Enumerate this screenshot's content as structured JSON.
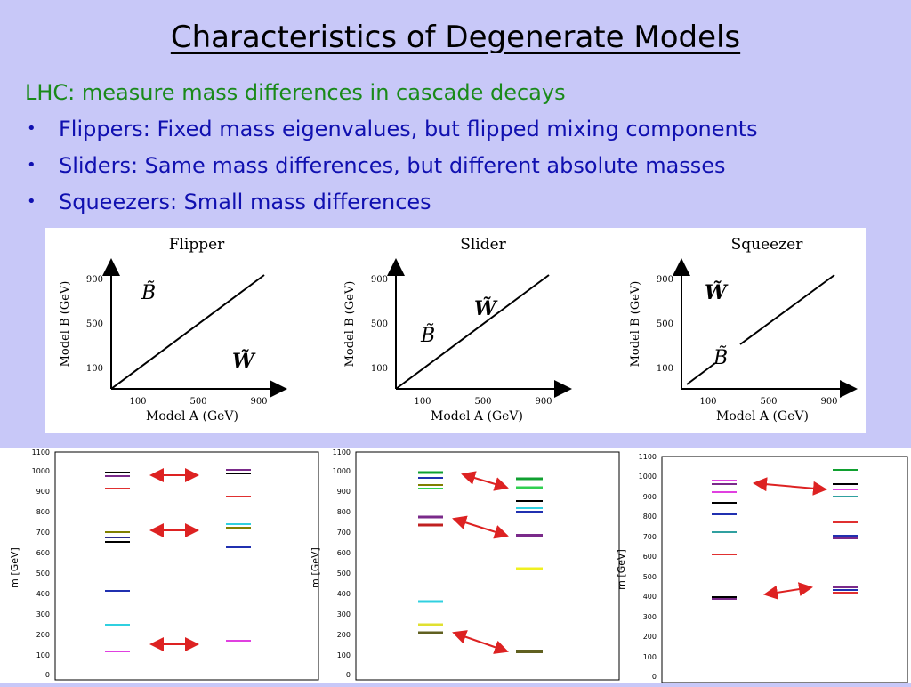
{
  "slide": {
    "title": "Characteristics of Degenerate Models",
    "intro": "LHC:  measure mass differences in cascade decays",
    "bullets": [
      "Flippers:  Fixed mass eigenvalues, but flipped mixing components",
      "Sliders:  Same mass differences, but different absolute masses",
      "Squeezers: Small mass differences"
    ],
    "bullet_glyph": "•"
  },
  "top_panels": [
    {
      "title": "Flipper",
      "ylabel": "Model B (GeV)",
      "xlabel": "Model A (GeV)",
      "ticks": [
        "100",
        "500",
        "900"
      ],
      "label_upper": "B̃",
      "label_lower": "W̃"
    },
    {
      "title": "Slider",
      "ylabel": "Model B (GeV)",
      "xlabel": "Model A (GeV)",
      "ticks": [
        "100",
        "500",
        "900"
      ],
      "label_upper": "W̃",
      "label_lower": "B̃"
    },
    {
      "title": "Squeezer",
      "ylabel": "Model B (GeV)",
      "xlabel": "Model A (GeV)",
      "ticks": [
        "100",
        "500",
        "900"
      ],
      "label_upper": "W̃",
      "label_lower": "B̃"
    }
  ],
  "mass_plots": {
    "ylabel": "m [GeV]",
    "yticks": [
      "0",
      "100",
      "200",
      "300",
      "400",
      "500",
      "600",
      "700",
      "800",
      "900",
      "1000",
      "1100"
    ]
  },
  "colors": {
    "red_arrow": "#dd2222"
  }
}
